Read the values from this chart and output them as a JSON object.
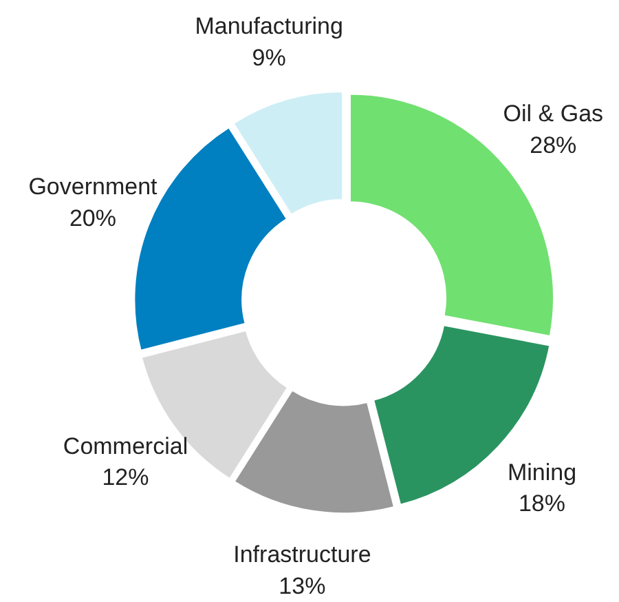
{
  "chart_data": {
    "type": "donut",
    "categories": [
      "Oil & Gas",
      "Mining",
      "Infrastructure",
      "Commercial",
      "Government",
      "Manufacturing"
    ],
    "values": [
      28,
      18,
      13,
      12,
      20,
      9
    ],
    "colors": [
      "#70e070",
      "#2a9461",
      "#999999",
      "#d9d9d9",
      "#0080c0",
      "#cdeef5"
    ],
    "value_labels": [
      "28%",
      "18%",
      "13%",
      "12%",
      "20%",
      "9%"
    ]
  }
}
